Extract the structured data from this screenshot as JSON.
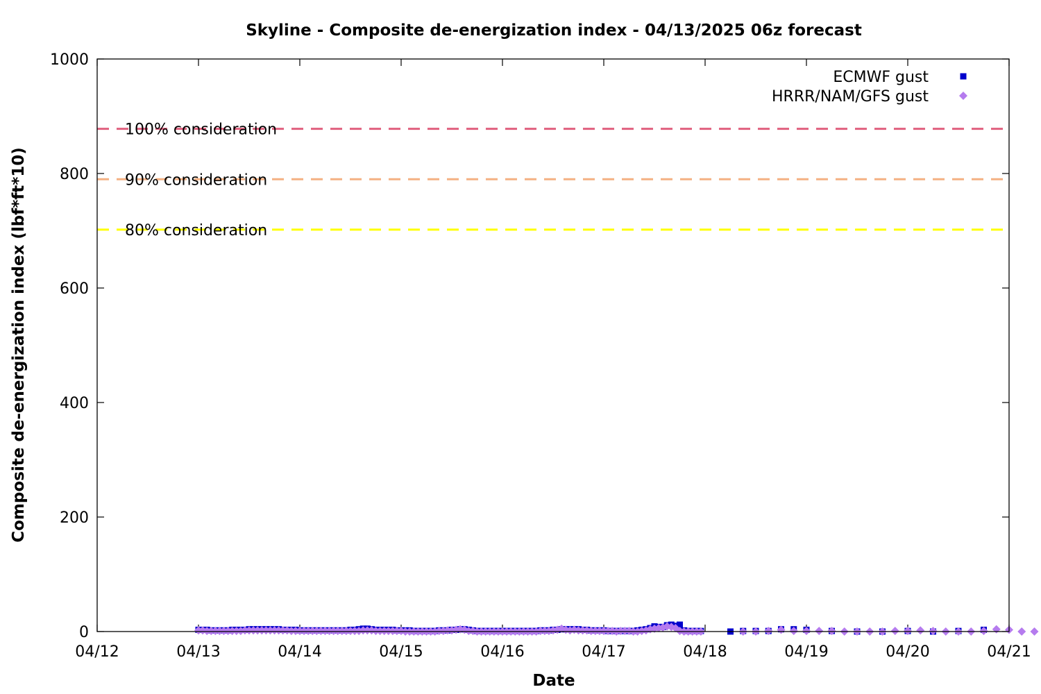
{
  "chart_data": {
    "type": "scatter",
    "title": "Skyline - Composite de-energization index - 04/13/2025 06z forecast",
    "xlabel": "Date",
    "ylabel": "Composite de-energization index (lbf*ft*10)",
    "xlim": [
      "04/12 00z",
      "04/21 00z"
    ],
    "ylim": [
      0,
      1000
    ],
    "x_ticks": [
      "04/12",
      "04/13",
      "04/14",
      "04/15",
      "04/16",
      "04/17",
      "04/18",
      "04/19",
      "04/20",
      "04/21"
    ],
    "y_ticks": [
      0,
      200,
      400,
      600,
      800,
      1000
    ],
    "grid": false,
    "legend_position": "top-right",
    "thresholds": [
      {
        "label": "100% consideration",
        "value": 878,
        "color": "#e0607e"
      },
      {
        "label": "90% consideration",
        "value": 790,
        "color": "#f4b183"
      },
      {
        "label": "80% consideration",
        "value": 702,
        "color": "#ffff00"
      }
    ],
    "series": [
      {
        "name": "ECMWF gust",
        "color": "#0000cc",
        "marker": "square",
        "points": [
          [
            "04/13 00z",
            3
          ],
          [
            "04/13 01z",
            3
          ],
          [
            "04/13 02z",
            3
          ],
          [
            "04/13 03z",
            2
          ],
          [
            "04/13 04z",
            2
          ],
          [
            "04/13 05z",
            2
          ],
          [
            "04/13 06z",
            2
          ],
          [
            "04/13 07z",
            2
          ],
          [
            "04/13 08z",
            3
          ],
          [
            "04/13 09z",
            3
          ],
          [
            "04/13 10z",
            3
          ],
          [
            "04/13 11z",
            3
          ],
          [
            "04/13 12z",
            4
          ],
          [
            "04/13 13z",
            4
          ],
          [
            "04/13 14z",
            4
          ],
          [
            "04/13 15z",
            4
          ],
          [
            "04/13 16z",
            4
          ],
          [
            "04/13 17z",
            4
          ],
          [
            "04/13 18z",
            4
          ],
          [
            "04/13 19z",
            4
          ],
          [
            "04/13 20z",
            3
          ],
          [
            "04/13 21z",
            3
          ],
          [
            "04/13 22z",
            3
          ],
          [
            "04/13 23z",
            3
          ],
          [
            "04/14 00z",
            2
          ],
          [
            "04/14 01z",
            2
          ],
          [
            "04/14 02z",
            2
          ],
          [
            "04/14 03z",
            2
          ],
          [
            "04/14 04z",
            2
          ],
          [
            "04/14 05z",
            2
          ],
          [
            "04/14 06z",
            2
          ],
          [
            "04/14 07z",
            2
          ],
          [
            "04/14 08z",
            2
          ],
          [
            "04/14 09z",
            2
          ],
          [
            "04/14 10z",
            2
          ],
          [
            "04/14 11z",
            2
          ],
          [
            "04/14 12z",
            3
          ],
          [
            "04/14 13z",
            3
          ],
          [
            "04/14 14z",
            4
          ],
          [
            "04/14 15z",
            5
          ],
          [
            "04/14 16z",
            5
          ],
          [
            "04/14 17z",
            4
          ],
          [
            "04/14 18z",
            3
          ],
          [
            "04/14 19z",
            3
          ],
          [
            "04/14 20z",
            3
          ],
          [
            "04/14 21z",
            3
          ],
          [
            "04/14 22z",
            3
          ],
          [
            "04/14 23z",
            2
          ],
          [
            "04/15 00z",
            2
          ],
          [
            "04/15 01z",
            2
          ],
          [
            "04/15 02z",
            2
          ],
          [
            "04/15 03z",
            1
          ],
          [
            "04/15 04z",
            1
          ],
          [
            "04/15 05z",
            1
          ],
          [
            "04/15 06z",
            1
          ],
          [
            "04/15 07z",
            1
          ],
          [
            "04/15 08z",
            1
          ],
          [
            "04/15 09z",
            2
          ],
          [
            "04/15 10z",
            2
          ],
          [
            "04/15 11z",
            2
          ],
          [
            "04/15 12z",
            3
          ],
          [
            "04/15 13z",
            3
          ],
          [
            "04/15 14z",
            4
          ],
          [
            "04/15 15z",
            4
          ],
          [
            "04/15 16z",
            3
          ],
          [
            "04/15 17z",
            2
          ],
          [
            "04/15 18z",
            1
          ],
          [
            "04/15 19z",
            1
          ],
          [
            "04/15 20z",
            1
          ],
          [
            "04/15 21z",
            1
          ],
          [
            "04/15 22z",
            1
          ],
          [
            "04/15 23z",
            1
          ],
          [
            "04/16 00z",
            1
          ],
          [
            "04/16 01z",
            1
          ],
          [
            "04/16 02z",
            1
          ],
          [
            "04/16 03z",
            1
          ],
          [
            "04/16 04z",
            1
          ],
          [
            "04/16 05z",
            1
          ],
          [
            "04/16 06z",
            1
          ],
          [
            "04/16 07z",
            1
          ],
          [
            "04/16 08z",
            1
          ],
          [
            "04/16 09z",
            2
          ],
          [
            "04/16 10z",
            2
          ],
          [
            "04/16 11z",
            2
          ],
          [
            "04/16 12z",
            3
          ],
          [
            "04/16 13z",
            3
          ],
          [
            "04/16 14z",
            4
          ],
          [
            "04/16 15z",
            4
          ],
          [
            "04/16 16z",
            4
          ],
          [
            "04/16 17z",
            4
          ],
          [
            "04/16 18z",
            4
          ],
          [
            "04/16 19z",
            3
          ],
          [
            "04/16 20z",
            3
          ],
          [
            "04/16 21z",
            2
          ],
          [
            "04/16 22z",
            2
          ],
          [
            "04/16 23z",
            2
          ],
          [
            "04/17 00z",
            2
          ],
          [
            "04/17 01z",
            1
          ],
          [
            "04/17 02z",
            1
          ],
          [
            "04/17 03z",
            1
          ],
          [
            "04/17 04z",
            1
          ],
          [
            "04/17 05z",
            1
          ],
          [
            "04/17 06z",
            1
          ],
          [
            "04/17 07z",
            1
          ],
          [
            "04/17 08z",
            2
          ],
          [
            "04/17 09z",
            3
          ],
          [
            "04/17 10z",
            4
          ],
          [
            "04/17 11z",
            6
          ],
          [
            "04/17 12z",
            9
          ],
          [
            "04/17 13z",
            8
          ],
          [
            "04/17 14z",
            8
          ],
          [
            "04/17 15z",
            11
          ],
          [
            "04/17 16z",
            12
          ],
          [
            "04/17 17z",
            10
          ],
          [
            "04/17 18z",
            12
          ],
          [
            "04/17 19z",
            2
          ],
          [
            "04/17 20z",
            1
          ],
          [
            "04/17 21z",
            1
          ],
          [
            "04/17 22z",
            1
          ],
          [
            "04/17 23z",
            1
          ],
          [
            "04/18 06z",
            0
          ],
          [
            "04/18 09z",
            1
          ],
          [
            "04/18 12z",
            1
          ],
          [
            "04/18 15z",
            1
          ],
          [
            "04/18 18z",
            4
          ],
          [
            "04/18 21z",
            4
          ],
          [
            "04/19 00z",
            3
          ],
          [
            "04/19 06z",
            1
          ],
          [
            "04/19 12z",
            0
          ],
          [
            "04/19 18z",
            0
          ],
          [
            "04/20 00z",
            1
          ],
          [
            "04/20 06z",
            0
          ],
          [
            "04/20 12z",
            1
          ],
          [
            "04/20 18z",
            3
          ]
        ]
      },
      {
        "name": "HRRR/NAM/GFS gust",
        "color": "#b57bee",
        "marker": "diamond",
        "points": [
          [
            "04/13 00z",
            2
          ],
          [
            "04/13 01z",
            2
          ],
          [
            "04/13 02z",
            1
          ],
          [
            "04/13 03z",
            1
          ],
          [
            "04/13 04z",
            1
          ],
          [
            "04/13 05z",
            1
          ],
          [
            "04/13 06z",
            1
          ],
          [
            "04/13 07z",
            1
          ],
          [
            "04/13 08z",
            1
          ],
          [
            "04/13 09z",
            1
          ],
          [
            "04/13 10z",
            1
          ],
          [
            "04/13 11z",
            2
          ],
          [
            "04/13 12z",
            2
          ],
          [
            "04/13 13z",
            2
          ],
          [
            "04/13 14z",
            2
          ],
          [
            "04/13 15z",
            2
          ],
          [
            "04/13 16z",
            2
          ],
          [
            "04/13 17z",
            2
          ],
          [
            "04/13 18z",
            2
          ],
          [
            "04/13 19z",
            2
          ],
          [
            "04/13 20z",
            2
          ],
          [
            "04/13 21z",
            2
          ],
          [
            "04/13 22z",
            1
          ],
          [
            "04/13 23z",
            1
          ],
          [
            "04/14 00z",
            1
          ],
          [
            "04/14 01z",
            1
          ],
          [
            "04/14 02z",
            1
          ],
          [
            "04/14 03z",
            1
          ],
          [
            "04/14 04z",
            1
          ],
          [
            "04/14 05z",
            1
          ],
          [
            "04/14 06z",
            1
          ],
          [
            "04/14 07z",
            1
          ],
          [
            "04/14 08z",
            1
          ],
          [
            "04/14 09z",
            1
          ],
          [
            "04/14 10z",
            1
          ],
          [
            "04/14 11z",
            1
          ],
          [
            "04/14 12z",
            1
          ],
          [
            "04/14 13z",
            1
          ],
          [
            "04/14 14z",
            1
          ],
          [
            "04/14 15z",
            2
          ],
          [
            "04/14 16z",
            2
          ],
          [
            "04/14 17z",
            2
          ],
          [
            "04/14 18z",
            1
          ],
          [
            "04/14 19z",
            1
          ],
          [
            "04/14 20z",
            1
          ],
          [
            "04/14 21z",
            1
          ],
          [
            "04/14 22z",
            1
          ],
          [
            "04/14 23z",
            1
          ],
          [
            "04/15 00z",
            1
          ],
          [
            "04/15 01z",
            0
          ],
          [
            "04/15 02z",
            0
          ],
          [
            "04/15 03z",
            0
          ],
          [
            "04/15 04z",
            0
          ],
          [
            "04/15 05z",
            0
          ],
          [
            "04/15 06z",
            0
          ],
          [
            "04/15 07z",
            0
          ],
          [
            "04/15 08z",
            0
          ],
          [
            "04/15 09z",
            1
          ],
          [
            "04/15 10z",
            1
          ],
          [
            "04/15 11z",
            2
          ],
          [
            "04/15 12z",
            2
          ],
          [
            "04/15 13z",
            3
          ],
          [
            "04/15 14z",
            4
          ],
          [
            "04/15 15z",
            3
          ],
          [
            "04/15 16z",
            1
          ],
          [
            "04/15 17z",
            1
          ],
          [
            "04/15 18z",
            0
          ],
          [
            "04/15 19z",
            0
          ],
          [
            "04/15 20z",
            0
          ],
          [
            "04/15 21z",
            0
          ],
          [
            "04/15 22z",
            0
          ],
          [
            "04/15 23z",
            0
          ],
          [
            "04/16 00z",
            0
          ],
          [
            "04/16 01z",
            0
          ],
          [
            "04/16 02z",
            0
          ],
          [
            "04/16 03z",
            0
          ],
          [
            "04/16 04z",
            0
          ],
          [
            "04/16 05z",
            0
          ],
          [
            "04/16 06z",
            0
          ],
          [
            "04/16 07z",
            0
          ],
          [
            "04/16 08z",
            0
          ],
          [
            "04/16 09z",
            1
          ],
          [
            "04/16 10z",
            1
          ],
          [
            "04/16 11z",
            1
          ],
          [
            "04/16 12z",
            2
          ],
          [
            "04/16 13z",
            3
          ],
          [
            "04/16 14z",
            5
          ],
          [
            "04/16 15z",
            3
          ],
          [
            "04/16 16z",
            2
          ],
          [
            "04/16 17z",
            3
          ],
          [
            "04/16 18z",
            2
          ],
          [
            "04/16 19z",
            2
          ],
          [
            "04/16 20z",
            2
          ],
          [
            "04/16 21z",
            1
          ],
          [
            "04/16 22z",
            1
          ],
          [
            "04/16 23z",
            1
          ],
          [
            "04/17 00z",
            1
          ],
          [
            "04/17 01z",
            1
          ],
          [
            "04/17 02z",
            1
          ],
          [
            "04/17 03z",
            0
          ],
          [
            "04/17 04z",
            1
          ],
          [
            "04/17 05z",
            1
          ],
          [
            "04/17 06z",
            1
          ],
          [
            "04/17 07z",
            0
          ],
          [
            "04/17 08z",
            0
          ],
          [
            "04/17 09z",
            1
          ],
          [
            "04/17 10z",
            2
          ],
          [
            "04/17 11z",
            4
          ],
          [
            "04/17 12z",
            5
          ],
          [
            "04/17 13z",
            6
          ],
          [
            "04/17 14z",
            7
          ],
          [
            "04/17 15z",
            9
          ],
          [
            "04/17 16z",
            8
          ],
          [
            "04/17 17z",
            6
          ],
          [
            "04/17 18z",
            1
          ],
          [
            "04/17 19z",
            0
          ],
          [
            "04/17 20z",
            0
          ],
          [
            "04/17 21z",
            0
          ],
          [
            "04/17 22z",
            0
          ],
          [
            "04/17 23z",
            0
          ],
          [
            "04/18 09z",
            0
          ],
          [
            "04/18 12z",
            0
          ],
          [
            "04/18 15z",
            1
          ],
          [
            "04/18 18z",
            3
          ],
          [
            "04/18 21z",
            1
          ],
          [
            "04/19 00z",
            1
          ],
          [
            "04/19 03z",
            1
          ],
          [
            "04/19 06z",
            1
          ],
          [
            "04/19 09z",
            0
          ],
          [
            "04/19 12z",
            0
          ],
          [
            "04/19 15z",
            0
          ],
          [
            "04/19 18z",
            0
          ],
          [
            "04/19 21z",
            1
          ],
          [
            "04/20 00z",
            1
          ],
          [
            "04/20 03z",
            2
          ],
          [
            "04/20 06z",
            1
          ],
          [
            "04/20 09z",
            0
          ],
          [
            "04/20 12z",
            0
          ],
          [
            "04/20 15z",
            0
          ],
          [
            "04/20 18z",
            1
          ],
          [
            "04/20 21z",
            4
          ],
          [
            "04/21 00z",
            3
          ],
          [
            "04/21 03z",
            0
          ],
          [
            "04/21 06z",
            0
          ]
        ]
      }
    ]
  }
}
